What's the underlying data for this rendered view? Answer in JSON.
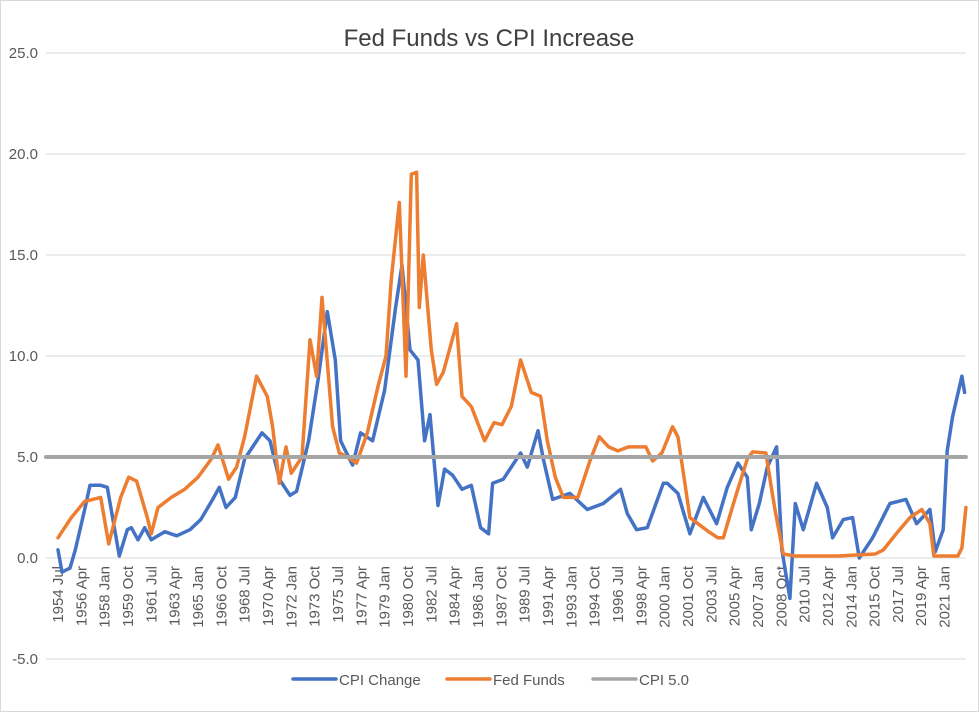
{
  "chart_data": {
    "type": "line",
    "title": "Fed Funds vs CPI Increase",
    "xlabel": "",
    "ylabel": "",
    "ylim": [
      -5,
      25
    ],
    "yticks": [
      "-5.0",
      "0.0",
      "5.0",
      "10.0",
      "15.0",
      "20.0",
      "25.0"
    ],
    "ytick_values": [
      -5,
      0,
      5,
      10,
      15,
      20,
      25
    ],
    "grid": true,
    "legend": "bottom",
    "x_start": "1954 Jul",
    "x_end": "2022 Sep",
    "xtick_labels": [
      "1954 Jul",
      "1956 Apr",
      "1958 Jan",
      "1959 Oct",
      "1961 Jul",
      "1963 Apr",
      "1965 Jan",
      "1966 Oct",
      "1968 Jul",
      "1970 Apr",
      "1972 Jan",
      "1973 Oct",
      "1975 Jul",
      "1977 Apr",
      "1979 Jan",
      "1980 Oct",
      "1982 Jul",
      "1984 Apr",
      "1986 Jan",
      "1987 Oct",
      "1989 Jul",
      "1991 Apr",
      "1993 Jan",
      "1994 Oct",
      "1996 Jul",
      "1998 Apr",
      "2000 Jan",
      "2001 Oct",
      "2003 Jul",
      "2005 Apr",
      "2007 Jan",
      "2008 Oct",
      "2010 Jul",
      "2012 Apr",
      "2014 Jan",
      "2015 Oct",
      "2017 Jul",
      "2019 Apr",
      "2021 Jan"
    ],
    "series": [
      {
        "name": "CPI Change",
        "color": "#4472C4",
        "points": [
          [
            1954.5,
            0.4
          ],
          [
            1954.8,
            -0.7
          ],
          [
            1955.4,
            -0.5
          ],
          [
            1955.8,
            0.4
          ],
          [
            1956.5,
            2.4
          ],
          [
            1956.9,
            3.6
          ],
          [
            1957.7,
            3.6
          ],
          [
            1958.2,
            3.5
          ],
          [
            1959.1,
            0.1
          ],
          [
            1959.7,
            1.4
          ],
          [
            1960.0,
            1.5
          ],
          [
            1960.5,
            0.9
          ],
          [
            1961.0,
            1.5
          ],
          [
            1961.5,
            0.9
          ],
          [
            1962.5,
            1.3
          ],
          [
            1963.4,
            1.1
          ],
          [
            1964.4,
            1.4
          ],
          [
            1965.2,
            1.9
          ],
          [
            1966.1,
            2.9
          ],
          [
            1966.6,
            3.5
          ],
          [
            1967.1,
            2.5
          ],
          [
            1967.8,
            3.0
          ],
          [
            1968.5,
            4.9
          ],
          [
            1969.8,
            6.2
          ],
          [
            1970.4,
            5.8
          ],
          [
            1971.1,
            3.9
          ],
          [
            1971.9,
            3.1
          ],
          [
            1972.4,
            3.3
          ],
          [
            1973.3,
            5.8
          ],
          [
            1974.0,
            8.8
          ],
          [
            1974.7,
            12.2
          ],
          [
            1975.3,
            9.8
          ],
          [
            1975.7,
            5.8
          ],
          [
            1976.6,
            4.6
          ],
          [
            1977.2,
            6.2
          ],
          [
            1978.1,
            5.8
          ],
          [
            1979.0,
            8.3
          ],
          [
            1979.8,
            12.3
          ],
          [
            1980.3,
            14.5
          ],
          [
            1980.9,
            10.3
          ],
          [
            1981.5,
            9.8
          ],
          [
            1982.0,
            5.8
          ],
          [
            1982.4,
            7.1
          ],
          [
            1983.0,
            2.6
          ],
          [
            1983.5,
            4.4
          ],
          [
            1984.1,
            4.1
          ],
          [
            1984.8,
            3.4
          ],
          [
            1985.5,
            3.6
          ],
          [
            1986.2,
            1.5
          ],
          [
            1986.8,
            1.2
          ],
          [
            1987.1,
            3.7
          ],
          [
            1987.9,
            3.9
          ],
          [
            1989.2,
            5.2
          ],
          [
            1989.7,
            4.5
          ],
          [
            1990.5,
            6.3
          ],
          [
            1990.9,
            4.9
          ],
          [
            1991.6,
            2.9
          ],
          [
            1992.9,
            3.2
          ],
          [
            1994.2,
            2.4
          ],
          [
            1995.4,
            2.7
          ],
          [
            1996.7,
            3.4
          ],
          [
            1997.2,
            2.2
          ],
          [
            1997.9,
            1.4
          ],
          [
            1998.7,
            1.5
          ],
          [
            1999.9,
            3.7
          ],
          [
            2000.2,
            3.7
          ],
          [
            2001.0,
            3.2
          ],
          [
            2001.9,
            1.2
          ],
          [
            2002.9,
            3.0
          ],
          [
            2003.9,
            1.7
          ],
          [
            2004.7,
            3.5
          ],
          [
            2005.5,
            4.7
          ],
          [
            2006.2,
            4.0
          ],
          [
            2006.5,
            1.4
          ],
          [
            2007.1,
            2.7
          ],
          [
            2007.7,
            4.5
          ],
          [
            2008.4,
            5.5
          ],
          [
            2008.8,
            0.4
          ],
          [
            2009.4,
            -2.0
          ],
          [
            2009.8,
            2.7
          ],
          [
            2010.4,
            1.4
          ],
          [
            2011.4,
            3.7
          ],
          [
            2012.2,
            2.5
          ],
          [
            2012.6,
            1.0
          ],
          [
            2013.4,
            1.9
          ],
          [
            2014.1,
            2.0
          ],
          [
            2014.6,
            0.0
          ],
          [
            2015.6,
            1.0
          ],
          [
            2016.9,
            2.7
          ],
          [
            2018.1,
            2.9
          ],
          [
            2018.9,
            1.7
          ],
          [
            2019.9,
            2.4
          ],
          [
            2020.3,
            0.3
          ],
          [
            2020.9,
            1.4
          ],
          [
            2021.2,
            5.3
          ],
          [
            2021.6,
            7.0
          ],
          [
            2022.3,
            9.0
          ],
          [
            2022.5,
            8.2
          ]
        ]
      },
      {
        "name": "Fed Funds",
        "color": "#ED7D31",
        "points": [
          [
            1954.5,
            1.0
          ],
          [
            1955.5,
            2.0
          ],
          [
            1956.5,
            2.8
          ],
          [
            1957.7,
            3.0
          ],
          [
            1958.3,
            0.7
          ],
          [
            1959.2,
            3.0
          ],
          [
            1959.8,
            4.0
          ],
          [
            1960.4,
            3.8
          ],
          [
            1961.2,
            2.0
          ],
          [
            1961.5,
            1.2
          ],
          [
            1962.0,
            2.5
          ],
          [
            1963.0,
            3.0
          ],
          [
            1964.0,
            3.4
          ],
          [
            1965.0,
            4.0
          ],
          [
            1966.0,
            4.9
          ],
          [
            1966.5,
            5.6
          ],
          [
            1967.3,
            3.9
          ],
          [
            1967.9,
            4.5
          ],
          [
            1968.5,
            6.0
          ],
          [
            1969.4,
            9.0
          ],
          [
            1970.2,
            8.0
          ],
          [
            1970.6,
            6.5
          ],
          [
            1971.1,
            3.7
          ],
          [
            1971.6,
            5.5
          ],
          [
            1972.0,
            4.2
          ],
          [
            1972.8,
            5.0
          ],
          [
            1973.4,
            10.8
          ],
          [
            1973.9,
            9.0
          ],
          [
            1974.3,
            12.9
          ],
          [
            1975.1,
            6.5
          ],
          [
            1975.6,
            5.2
          ],
          [
            1976.2,
            5.0
          ],
          [
            1976.9,
            4.7
          ],
          [
            1977.7,
            6.2
          ],
          [
            1978.5,
            8.5
          ],
          [
            1979.1,
            10.0
          ],
          [
            1979.5,
            13.8
          ],
          [
            1980.1,
            17.6
          ],
          [
            1980.6,
            9.0
          ],
          [
            1981.0,
            19.0
          ],
          [
            1981.4,
            19.1
          ],
          [
            1981.6,
            12.4
          ],
          [
            1981.9,
            15.0
          ],
          [
            1982.5,
            10.3
          ],
          [
            1982.9,
            8.6
          ],
          [
            1983.4,
            9.2
          ],
          [
            1984.4,
            11.6
          ],
          [
            1984.8,
            8.0
          ],
          [
            1985.5,
            7.5
          ],
          [
            1986.5,
            5.8
          ],
          [
            1987.2,
            6.7
          ],
          [
            1987.8,
            6.6
          ],
          [
            1988.5,
            7.5
          ],
          [
            1989.2,
            9.8
          ],
          [
            1990.0,
            8.2
          ],
          [
            1990.7,
            8.0
          ],
          [
            1991.2,
            5.8
          ],
          [
            1991.8,
            4.0
          ],
          [
            1992.4,
            3.0
          ],
          [
            1993.5,
            3.0
          ],
          [
            1994.4,
            4.8
          ],
          [
            1995.1,
            6.0
          ],
          [
            1995.8,
            5.5
          ],
          [
            1996.5,
            5.3
          ],
          [
            1997.3,
            5.5
          ],
          [
            1998.6,
            5.5
          ],
          [
            1999.1,
            4.8
          ],
          [
            1999.8,
            5.2
          ],
          [
            2000.6,
            6.5
          ],
          [
            2001.0,
            6.0
          ],
          [
            2001.5,
            3.8
          ],
          [
            2001.9,
            2.0
          ],
          [
            2002.5,
            1.7
          ],
          [
            2003.3,
            1.3
          ],
          [
            2004.0,
            1.0
          ],
          [
            2004.4,
            1.0
          ],
          [
            2005.3,
            3.0
          ],
          [
            2006.2,
            4.9
          ],
          [
            2006.6,
            5.25
          ],
          [
            2007.6,
            5.2
          ],
          [
            2008.0,
            3.5
          ],
          [
            2008.3,
            2.3
          ],
          [
            2008.9,
            0.2
          ],
          [
            2009.8,
            0.1
          ],
          [
            2013.0,
            0.1
          ],
          [
            2015.8,
            0.2
          ],
          [
            2016.4,
            0.4
          ],
          [
            2017.5,
            1.3
          ],
          [
            2018.4,
            2.0
          ],
          [
            2019.3,
            2.4
          ],
          [
            2019.9,
            1.7
          ],
          [
            2020.2,
            0.1
          ],
          [
            2022.0,
            0.1
          ],
          [
            2022.3,
            0.5
          ],
          [
            2022.6,
            2.5
          ]
        ]
      },
      {
        "name": "CPI 5.0",
        "color": "#A5A5A5",
        "points": [
          [
            1954.5,
            5.0
          ],
          [
            2022.6,
            5.0
          ]
        ]
      }
    ]
  }
}
